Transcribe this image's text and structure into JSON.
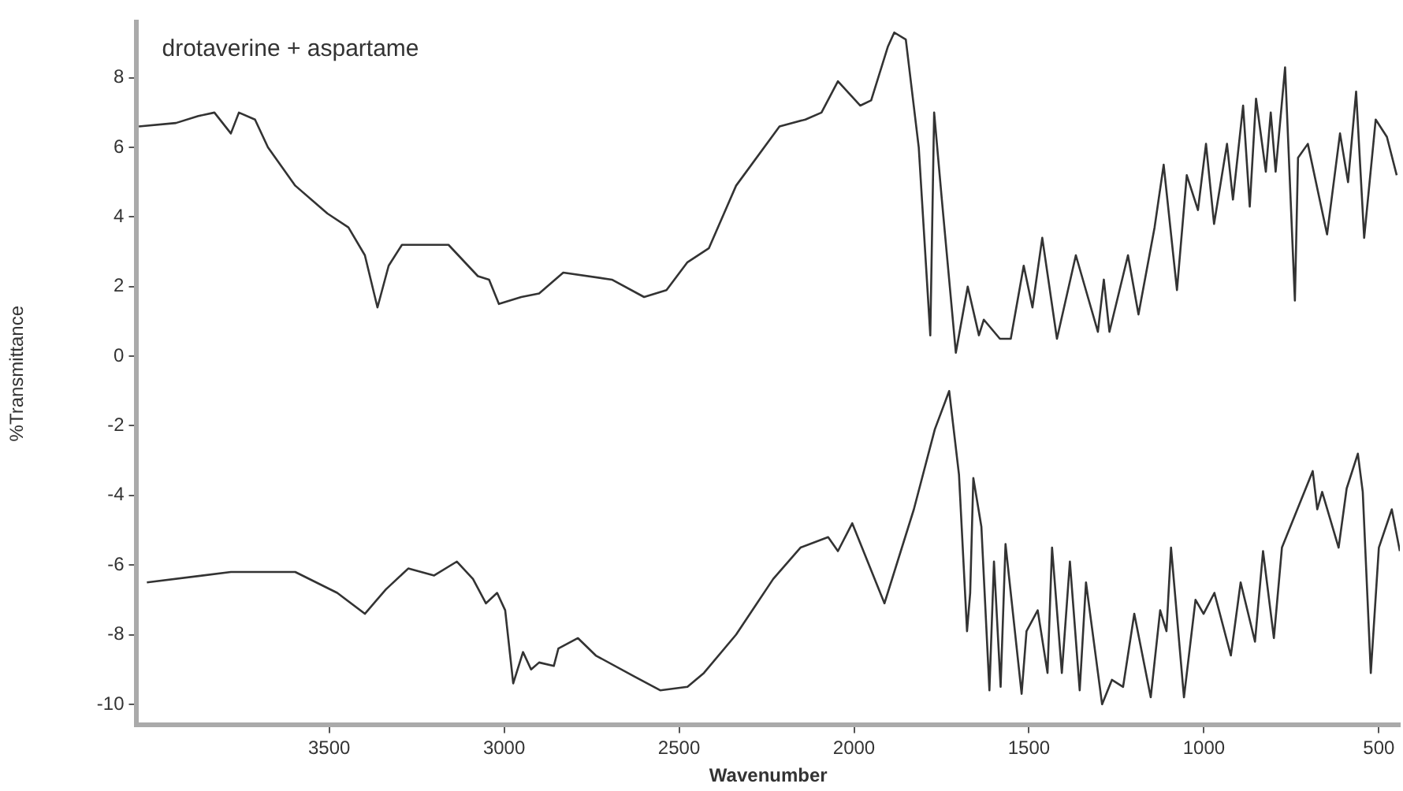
{
  "chart_data": {
    "type": "line",
    "xlabel": "Wavenumber",
    "ylabel": "%Transmittance",
    "annotations": [
      "drotaverine + aspartame"
    ],
    "xlim": [
      4050,
      440
    ],
    "ylim": [
      -10.6,
      9.6
    ],
    "xticks": [
      3500,
      3000,
      2500,
      2000,
      1500,
      1000,
      500
    ],
    "yticks": [
      -10,
      -8,
      -6,
      -4,
      -2,
      0,
      2,
      4,
      6,
      8
    ],
    "grid": false,
    "legend": false,
    "marker": "none",
    "line_style": "solid",
    "series": [
      {
        "color": "#333333",
        "x": [
          4044,
          3938,
          3874,
          3828,
          3781,
          3758,
          3712,
          3675,
          3597,
          3505,
          3445,
          3398,
          3362,
          3330,
          3292,
          3159,
          3075,
          3043,
          3015,
          2951,
          2900,
          2831,
          2692,
          2600,
          2536,
          2476,
          2415,
          2337,
          2213,
          2139,
          2093,
          2046,
          1982,
          1951,
          1903,
          1885,
          1852,
          1815,
          1782,
          1771,
          1749,
          1709,
          1675,
          1643,
          1629,
          1583,
          1552,
          1515,
          1490,
          1462,
          1420,
          1366,
          1303,
          1286,
          1270,
          1217,
          1187,
          1141,
          1115,
          1077,
          1049,
          1017,
          994,
          971,
          934,
          917,
          888,
          869,
          851,
          823,
          809,
          795,
          768,
          740,
          731,
          703,
          648,
          611,
          588,
          565,
          542,
          509,
          477,
          449
        ],
        "values": [
          6.6,
          6.7,
          6.9,
          7.0,
          6.4,
          7.0,
          6.8,
          6.0,
          4.9,
          4.1,
          3.7,
          2.9,
          1.4,
          2.6,
          3.2,
          3.2,
          2.3,
          2.2,
          1.5,
          1.7,
          1.8,
          2.4,
          2.2,
          1.7,
          1.9,
          2.7,
          3.1,
          4.9,
          6.6,
          6.8,
          7.0,
          7.9,
          7.2,
          7.35,
          8.9,
          9.3,
          9.1,
          6.0,
          0.6,
          7.0,
          4.5,
          0.1,
          2.0,
          0.6,
          1.05,
          0.5,
          0.5,
          2.6,
          1.4,
          3.4,
          0.5,
          2.9,
          0.7,
          2.2,
          0.7,
          2.9,
          1.2,
          3.7,
          5.5,
          1.9,
          5.2,
          4.2,
          6.1,
          3.8,
          6.1,
          4.5,
          7.2,
          4.3,
          7.4,
          5.3,
          7.0,
          5.3,
          8.3,
          1.6,
          5.7,
          6.1,
          3.5,
          6.4,
          5.0,
          7.6,
          3.4,
          6.8,
          6.3,
          5.2
        ]
      },
      {
        "color": "#333333",
        "x": [
          4021,
          3781,
          3597,
          3477,
          3398,
          3338,
          3274,
          3200,
          3135,
          3089,
          3052,
          3020,
          2997,
          2974,
          2946,
          2923,
          2900,
          2858,
          2845,
          2789,
          2738,
          2628,
          2554,
          2476,
          2429,
          2337,
          2231,
          2153,
          2074,
          2046,
          2005,
          1913,
          1829,
          1769,
          1728,
          1700,
          1677,
          1668,
          1659,
          1636,
          1613,
          1600,
          1581,
          1567,
          1521,
          1507,
          1475,
          1447,
          1434,
          1406,
          1383,
          1355,
          1337,
          1291,
          1263,
          1231,
          1199,
          1152,
          1125,
          1107,
          1094,
          1057,
          1024,
          1001,
          970,
          923,
          895,
          854,
          831,
          800,
          777,
          689,
          676,
          662,
          615,
          592,
          560,
          546,
          523,
          500,
          463,
          440
        ],
        "values": [
          -6.5,
          -6.2,
          -6.2,
          -6.8,
          -7.4,
          -6.7,
          -6.1,
          -6.3,
          -5.9,
          -6.4,
          -7.1,
          -6.8,
          -7.3,
          -9.4,
          -8.5,
          -9.0,
          -8.8,
          -8.9,
          -8.4,
          -8.1,
          -8.6,
          -9.2,
          -9.6,
          -9.5,
          -9.1,
          -8.0,
          -6.4,
          -5.5,
          -5.2,
          -5.6,
          -4.8,
          -7.1,
          -4.4,
          -2.1,
          -1.0,
          -3.4,
          -7.9,
          -6.8,
          -3.5,
          -4.9,
          -9.6,
          -5.9,
          -9.5,
          -5.4,
          -9.7,
          -7.9,
          -7.3,
          -9.1,
          -5.5,
          -9.1,
          -5.9,
          -9.6,
          -6.5,
          -10.0,
          -9.3,
          -9.5,
          -7.4,
          -9.8,
          -7.3,
          -7.9,
          -5.5,
          -9.8,
          -7.0,
          -7.4,
          -6.8,
          -8.6,
          -6.5,
          -8.2,
          -5.6,
          -8.1,
          -5.5,
          -3.3,
          -4.4,
          -3.9,
          -5.5,
          -3.8,
          -2.8,
          -3.9,
          -9.1,
          -5.5,
          -4.4,
          -5.6
        ]
      }
    ]
  }
}
